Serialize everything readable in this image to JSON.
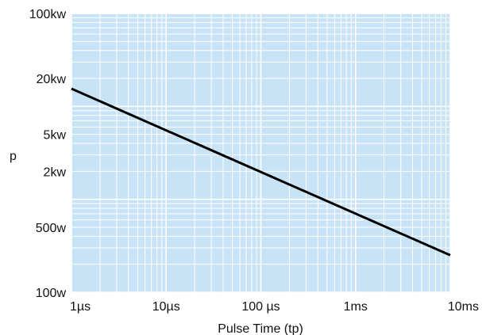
{
  "chart_data": {
    "type": "line",
    "title": "",
    "xlabel": "Pulse Time (tp)",
    "ylabel": "p",
    "x_scale": "log",
    "y_scale": "log",
    "xlim_seconds": [
      1e-06,
      0.01
    ],
    "ylim_watts": [
      100,
      100000
    ],
    "grid": true,
    "legend": "none",
    "x_tick_labels": [
      {
        "value_seconds": 1e-06,
        "label": "1µs"
      },
      {
        "value_seconds": 1e-05,
        "label": "10µs"
      },
      {
        "value_seconds": 0.0001,
        "label": "100 µs"
      },
      {
        "value_seconds": 0.001,
        "label": "1ms"
      },
      {
        "value_seconds": 0.01,
        "label": "10ms"
      }
    ],
    "y_tick_labels": [
      {
        "value_watts": 100,
        "label": "100w"
      },
      {
        "value_watts": 500,
        "label": "500w"
      },
      {
        "value_watts": 2000,
        "label": "2kw"
      },
      {
        "value_watts": 5000,
        "label": "5kw"
      },
      {
        "value_watts": 20000,
        "label": "20kw"
      },
      {
        "value_watts": 100000,
        "label": "100kw"
      }
    ],
    "series": [
      {
        "points": [
          {
            "x_seconds": 1e-06,
            "y_watts": 15500
          },
          {
            "x_seconds": 0.01,
            "y_watts": 250
          }
        ]
      }
    ],
    "colors": {
      "plot_background": "#c8e3f6",
      "grid": "#ffffff",
      "line": "#000000"
    }
  }
}
